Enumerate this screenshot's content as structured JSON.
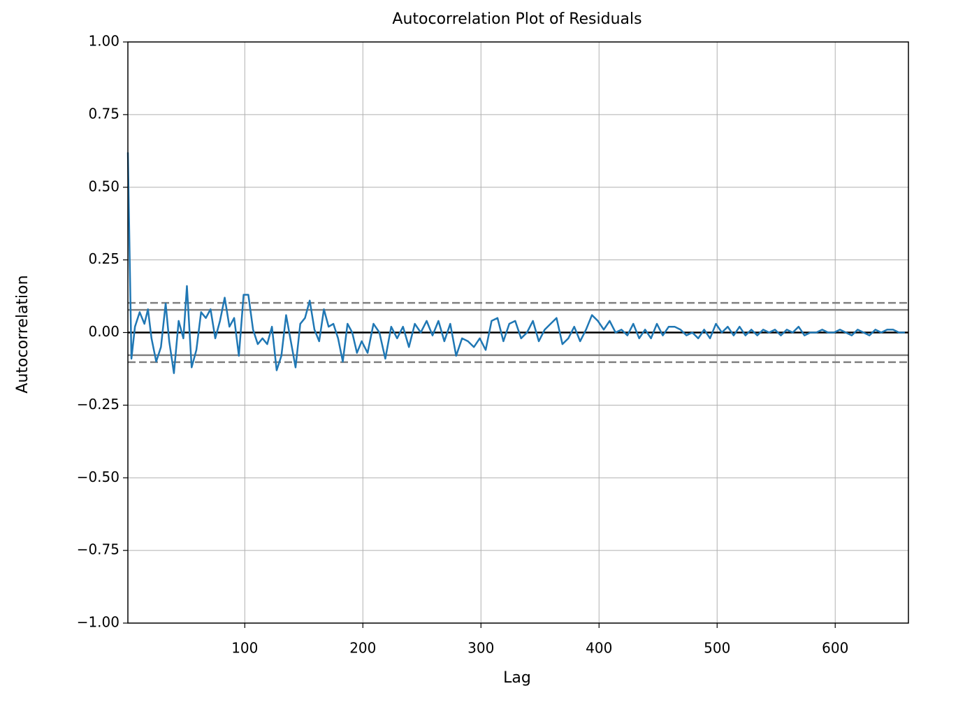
{
  "chart_data": {
    "type": "line",
    "title": "Autocorrelation Plot of Residuals",
    "x_label": "Lag",
    "y_label": "Autocorrelation",
    "xlim": [
      1,
      662
    ],
    "ylim": [
      -1,
      1
    ],
    "xticks": [
      100,
      200,
      300,
      400,
      500,
      600
    ],
    "yticks": [
      {
        "value": -1,
        "label": "−1.00"
      },
      {
        "value": -0.75,
        "label": "−0.75"
      },
      {
        "value": -0.5,
        "label": "−0.50"
      },
      {
        "value": -0.25,
        "label": "−0.25"
      },
      {
        "value": 0,
        "label": "0.00"
      },
      {
        "value": 0.25,
        "label": "0.25"
      },
      {
        "value": 0.5,
        "label": "0.50"
      },
      {
        "value": 0.75,
        "label": "0.75"
      },
      {
        "value": 1,
        "label": "1.00"
      }
    ],
    "grid": true,
    "hlines": [
      {
        "value": 0.078,
        "color": "#808080",
        "style": "solid"
      },
      {
        "value": 0.102,
        "color": "#808080",
        "style": "dashed"
      },
      {
        "value": 0,
        "color": "#000000",
        "style": "solid"
      },
      {
        "value": -0.078,
        "color": "#808080",
        "style": "solid"
      },
      {
        "value": -0.102,
        "color": "#808080",
        "style": "dashed"
      }
    ],
    "series": [
      {
        "color": "#1f77b4",
        "x": [
          1,
          4,
          7,
          11,
          15,
          18,
          21,
          25,
          29,
          33,
          36,
          40,
          44,
          48,
          51,
          55,
          59,
          63,
          67,
          71,
          75,
          79,
          83,
          87,
          91,
          95,
          99,
          103,
          107,
          111,
          115,
          119,
          123,
          127,
          131,
          135,
          139,
          143,
          147,
          151,
          155,
          159,
          163,
          167,
          171,
          175,
          179,
          183,
          187,
          191,
          195,
          199,
          204,
          209,
          214,
          219,
          224,
          229,
          234,
          239,
          244,
          249,
          254,
          259,
          264,
          269,
          274,
          279,
          284,
          289,
          294,
          299,
          304,
          309,
          314,
          319,
          324,
          329,
          334,
          339,
          344,
          349,
          354,
          359,
          364,
          369,
          374,
          379,
          384,
          389,
          394,
          399,
          404,
          409,
          414,
          419,
          424,
          429,
          434,
          439,
          444,
          449,
          454,
          459,
          464,
          469,
          474,
          479,
          484,
          489,
          494,
          499,
          504,
          509,
          514,
          519,
          524,
          529,
          534,
          539,
          544,
          549,
          554,
          559,
          564,
          569,
          574,
          579,
          584,
          589,
          594,
          599,
          604,
          609,
          614,
          619,
          624,
          629,
          634,
          639,
          644,
          649,
          654,
          659
        ],
        "values": [
          0.62,
          -0.09,
          0.02,
          0.07,
          0.03,
          0.08,
          -0.02,
          -0.1,
          -0.05,
          0.1,
          -0.03,
          -0.14,
          0.04,
          -0.02,
          0.16,
          -0.12,
          -0.06,
          0.07,
          0.05,
          0.08,
          -0.02,
          0.04,
          0.12,
          0.02,
          0.05,
          -0.08,
          0.13,
          0.13,
          0.01,
          -0.04,
          -0.02,
          -0.04,
          0.02,
          -0.13,
          -0.08,
          0.06,
          -0.03,
          -0.12,
          0.03,
          0.05,
          0.11,
          0.01,
          -0.03,
          0.08,
          0.02,
          0.03,
          -0.02,
          -0.1,
          0.03,
          0.0,
          -0.07,
          -0.03,
          -0.07,
          0.03,
          0.0,
          -0.09,
          0.02,
          -0.02,
          0.02,
          -0.05,
          0.03,
          0.0,
          0.04,
          -0.01,
          0.04,
          -0.03,
          0.03,
          -0.08,
          -0.02,
          -0.03,
          -0.05,
          -0.02,
          -0.06,
          0.04,
          0.05,
          -0.03,
          0.03,
          0.04,
          -0.02,
          0.0,
          0.04,
          -0.03,
          0.01,
          0.03,
          0.05,
          -0.04,
          -0.02,
          0.02,
          -0.03,
          0.01,
          0.06,
          0.04,
          0.01,
          0.04,
          0.0,
          0.01,
          -0.01,
          0.03,
          -0.02,
          0.01,
          -0.02,
          0.03,
          -0.01,
          0.02,
          0.02,
          0.01,
          -0.01,
          0.0,
          -0.02,
          0.01,
          -0.02,
          0.03,
          0.0,
          0.02,
          -0.01,
          0.02,
          -0.01,
          0.01,
          -0.01,
          0.01,
          0.0,
          0.01,
          -0.01,
          0.01,
          0.0,
          0.02,
          -0.01,
          0.0,
          0.0,
          0.01,
          0.0,
          0.0,
          0.01,
          0.0,
          -0.01,
          0.01,
          0.0,
          -0.01,
          0.01,
          0.0,
          0.01,
          0.01,
          0.0,
          0.0
        ]
      }
    ]
  }
}
